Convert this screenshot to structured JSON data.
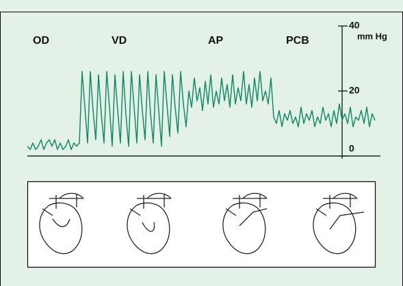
{
  "chart_data": {
    "type": "line",
    "annotations": [
      "OD",
      "VD",
      "AP",
      "PCB"
    ],
    "y_label": "mm Hg",
    "ylim": [
      0,
      40
    ],
    "yticks": [
      0,
      20,
      40
    ],
    "xlim": [
      0,
      127
    ],
    "series": [
      {
        "color": "#138a68",
        "values": [
          3,
          2,
          4,
          2,
          3,
          5,
          2,
          4,
          5,
          3,
          5,
          2,
          4,
          2,
          3,
          5,
          2,
          4,
          3,
          4,
          26,
          15,
          4,
          26,
          14,
          5,
          25,
          13,
          4,
          26,
          15,
          3,
          25,
          14,
          4,
          26,
          13,
          3,
          26,
          15,
          4,
          25,
          14,
          5,
          26,
          13,
          4,
          25,
          14,
          3,
          26,
          16,
          6,
          25,
          15,
          7,
          26,
          16,
          9,
          20,
          15,
          24,
          17,
          21,
          14,
          23,
          16,
          25,
          15,
          20,
          16,
          24,
          17,
          22,
          15,
          25,
          16,
          21,
          17,
          26,
          16,
          22,
          15,
          24,
          17,
          26,
          17,
          20,
          16,
          24,
          12,
          10,
          14,
          9,
          13,
          11,
          14,
          10,
          12,
          9,
          15,
          10,
          13,
          11,
          14,
          9,
          12,
          10,
          15,
          11,
          13,
          9,
          14,
          10,
          16,
          11,
          13,
          10,
          15,
          9,
          12,
          11,
          14,
          10,
          15,
          9,
          13,
          11
        ]
      }
    ]
  }
}
